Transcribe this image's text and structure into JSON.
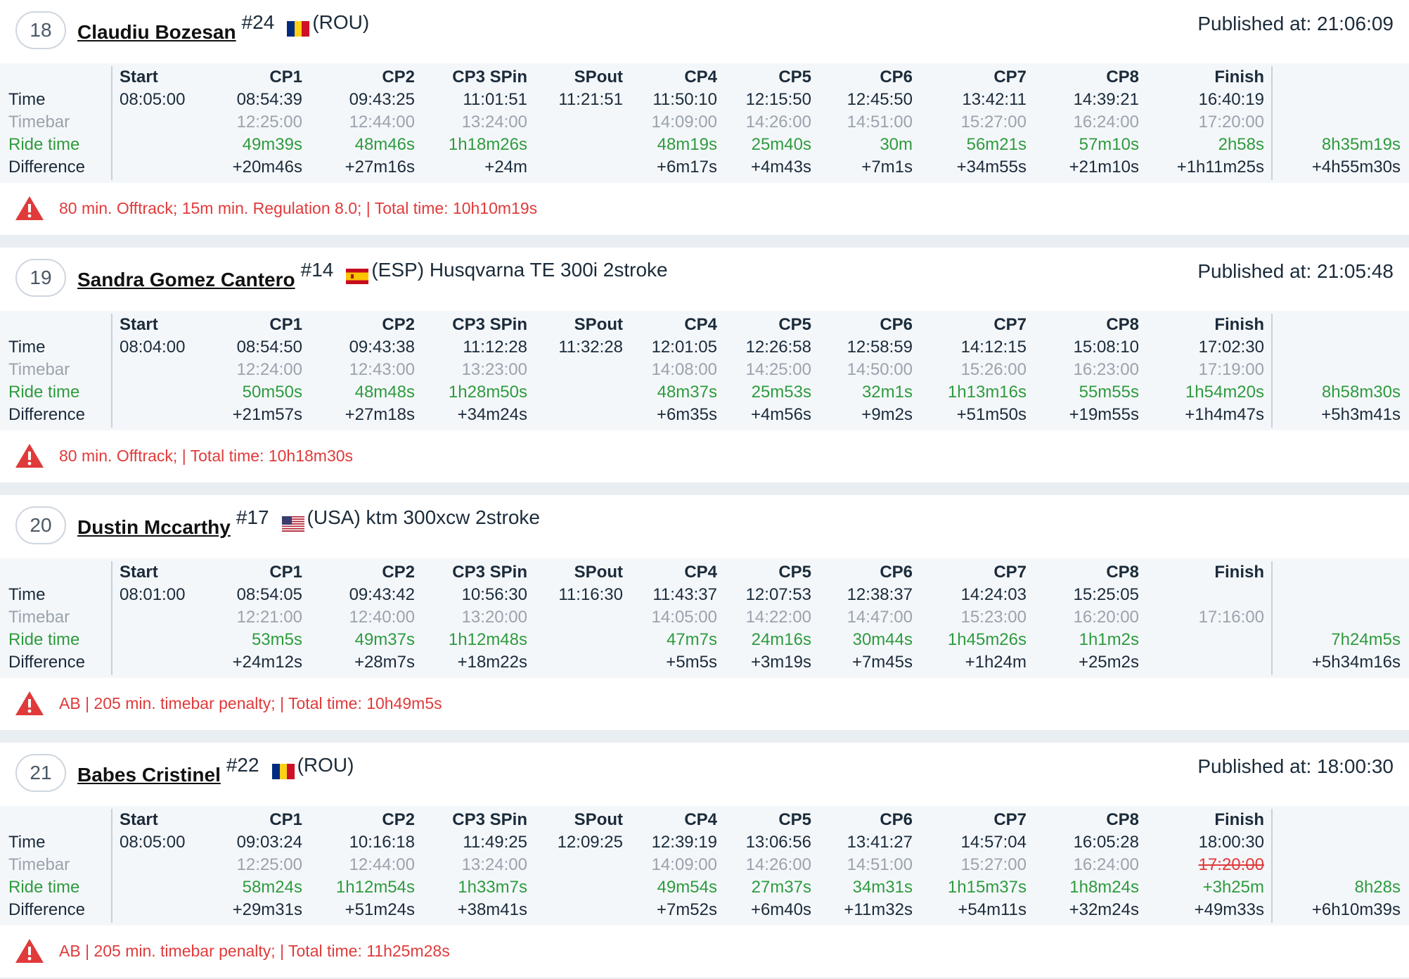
{
  "columns": [
    "Start",
    "CP1",
    "CP2",
    "CP3 SPin",
    "SPout",
    "CP4",
    "CP5",
    "CP6",
    "CP7",
    "CP8",
    "Finish"
  ],
  "row_labels": {
    "time": "Time",
    "timebar": "Timebar",
    "ride": "Ride time",
    "diff": "Difference"
  },
  "colors": {
    "green": "#2e9b3e",
    "red": "#e03a3a",
    "gray": "#9aa3ad"
  },
  "riders": [
    {
      "position": "18",
      "name": "Claudiu Bozesan",
      "number": "#24",
      "flag": "ROU",
      "info": "(ROU)",
      "published": "Published at: 21:06:09",
      "time": [
        "08:05:00",
        "08:54:39",
        "09:43:25",
        "11:01:51",
        "11:21:51",
        "11:50:10",
        "12:15:50",
        "12:45:50",
        "13:42:11",
        "14:39:21",
        "16:40:19"
      ],
      "timebar": [
        "",
        "12:25:00",
        "12:44:00",
        "13:24:00",
        "",
        "14:09:00",
        "14:26:00",
        "14:51:00",
        "15:27:00",
        "16:24:00",
        "17:20:00"
      ],
      "timebar_struck_finish": false,
      "ride": [
        "",
        "49m39s",
        "48m46s",
        "1h18m26s",
        "",
        "48m19s",
        "25m40s",
        "30m",
        "56m21s",
        "57m10s",
        "2h58s"
      ],
      "ride_total": "8h35m19s",
      "diff": [
        "",
        "+20m46s",
        "+27m16s",
        "+24m",
        "",
        "+6m17s",
        "+4m43s",
        "+7m1s",
        "+34m55s",
        "+21m10s",
        "+1h11m25s"
      ],
      "diff_total": "+4h55m30s",
      "penalty": "80 min. Offtrack; 15m min. Regulation 8.0; | Total time: 10h10m19s"
    },
    {
      "position": "19",
      "name": "Sandra Gomez Cantero",
      "number": "#14",
      "flag": "ESP",
      "info": "(ESP) Husqvarna TE 300i 2stroke",
      "published": "Published at: 21:05:48",
      "time": [
        "08:04:00",
        "08:54:50",
        "09:43:38",
        "11:12:28",
        "11:32:28",
        "12:01:05",
        "12:26:58",
        "12:58:59",
        "14:12:15",
        "15:08:10",
        "17:02:30"
      ],
      "timebar": [
        "",
        "12:24:00",
        "12:43:00",
        "13:23:00",
        "",
        "14:08:00",
        "14:25:00",
        "14:50:00",
        "15:26:00",
        "16:23:00",
        "17:19:00"
      ],
      "timebar_struck_finish": false,
      "ride": [
        "",
        "50m50s",
        "48m48s",
        "1h28m50s",
        "",
        "48m37s",
        "25m53s",
        "32m1s",
        "1h13m16s",
        "55m55s",
        "1h54m20s"
      ],
      "ride_total": "8h58m30s",
      "diff": [
        "",
        "+21m57s",
        "+27m18s",
        "+34m24s",
        "",
        "+6m35s",
        "+4m56s",
        "+9m2s",
        "+51m50s",
        "+19m55s",
        "+1h4m47s"
      ],
      "diff_total": "+5h3m41s",
      "penalty": "80 min. Offtrack; | Total time: 10h18m30s"
    },
    {
      "position": "20",
      "name": "Dustin Mccarthy",
      "number": "#17",
      "flag": "USA",
      "info": "(USA) ktm 300xcw 2stroke",
      "published": "",
      "time": [
        "08:01:00",
        "08:54:05",
        "09:43:42",
        "10:56:30",
        "11:16:30",
        "11:43:37",
        "12:07:53",
        "12:38:37",
        "14:24:03",
        "15:25:05",
        ""
      ],
      "timebar": [
        "",
        "12:21:00",
        "12:40:00",
        "13:20:00",
        "",
        "14:05:00",
        "14:22:00",
        "14:47:00",
        "15:23:00",
        "16:20:00",
        "17:16:00"
      ],
      "timebar_struck_finish": false,
      "ride": [
        "",
        "53m5s",
        "49m37s",
        "1h12m48s",
        "",
        "47m7s",
        "24m16s",
        "30m44s",
        "1h45m26s",
        "1h1m2s",
        ""
      ],
      "ride_total": "7h24m5s",
      "diff": [
        "",
        "+24m12s",
        "+28m7s",
        "+18m22s",
        "",
        "+5m5s",
        "+3m19s",
        "+7m45s",
        "+1h24m",
        "+25m2s",
        ""
      ],
      "diff_total": "+5h34m16s",
      "penalty": "AB | 205 min. timebar penalty; | Total time: 10h49m5s"
    },
    {
      "position": "21",
      "name": "Babes Cristinel",
      "number": "#22",
      "flag": "ROU",
      "info": "(ROU)",
      "published": "Published at: 18:00:30",
      "time": [
        "08:05:00",
        "09:03:24",
        "10:16:18",
        "11:49:25",
        "12:09:25",
        "12:39:19",
        "13:06:56",
        "13:41:27",
        "14:57:04",
        "16:05:28",
        "18:00:30"
      ],
      "timebar": [
        "",
        "12:25:00",
        "12:44:00",
        "13:24:00",
        "",
        "14:09:00",
        "14:26:00",
        "14:51:00",
        "15:27:00",
        "16:24:00",
        "17:20:00"
      ],
      "timebar_struck_finish": true,
      "ride": [
        "",
        "58m24s",
        "1h12m54s",
        "1h33m7s",
        "",
        "49m54s",
        "27m37s",
        "34m31s",
        "1h15m37s",
        "1h8m24s",
        "+3h25m"
      ],
      "ride_total": "8h28s",
      "diff": [
        "",
        "+29m31s",
        "+51m24s",
        "+38m41s",
        "",
        "+7m52s",
        "+6m40s",
        "+11m32s",
        "+54m11s",
        "+32m24s",
        "+49m33s"
      ],
      "diff_total": "+6h10m39s",
      "penalty": "AB | 205 min. timebar penalty; | Total time: 11h25m28s"
    }
  ]
}
